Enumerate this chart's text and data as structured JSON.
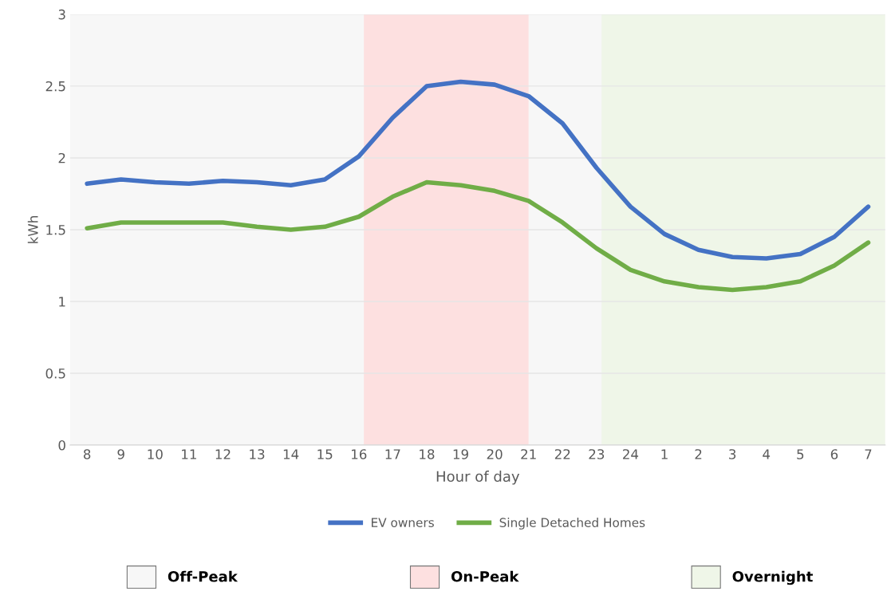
{
  "chart_data": {
    "type": "line",
    "xlabel": "Hour of day",
    "ylabel": "kWh",
    "categories": [
      "8",
      "9",
      "10",
      "11",
      "12",
      "13",
      "14",
      "15",
      "16",
      "17",
      "18",
      "19",
      "20",
      "21",
      "22",
      "23",
      "24",
      "1",
      "2",
      "3",
      "4",
      "5",
      "6",
      "7"
    ],
    "series": [
      {
        "name": "EV owners",
        "color": "#4472c4",
        "values": [
          1.82,
          1.85,
          1.83,
          1.82,
          1.84,
          1.83,
          1.81,
          1.85,
          2.01,
          2.28,
          2.5,
          2.53,
          2.51,
          2.43,
          2.24,
          1.93,
          1.66,
          1.47,
          1.36,
          1.31,
          1.3,
          1.33,
          1.45,
          1.66
        ]
      },
      {
        "name": "Single Detached Homes",
        "color": "#70ad47",
        "values": [
          1.51,
          1.55,
          1.55,
          1.55,
          1.55,
          1.52,
          1.5,
          1.52,
          1.59,
          1.73,
          1.83,
          1.81,
          1.77,
          1.7,
          1.55,
          1.37,
          1.22,
          1.14,
          1.1,
          1.08,
          1.1,
          1.14,
          1.25,
          1.41
        ]
      }
    ],
    "ylim": [
      0,
      3
    ],
    "yticks": [
      0,
      0.5,
      1,
      1.5,
      2,
      2.5,
      3
    ],
    "grid": "y",
    "legend": "bottom",
    "line_style": "solid",
    "marker": "none",
    "bands": [
      {
        "axis": "x",
        "from": "8",
        "to": "7",
        "label": "Off-Peak",
        "color": "#f7f7f7"
      },
      {
        "axis": "x",
        "from": "16",
        "to": "21",
        "label": "On-Peak",
        "color": "#fde0e0"
      },
      {
        "axis": "x",
        "from": "23",
        "to": "7",
        "label": "Overnight",
        "color": "#eff6e8"
      }
    ]
  }
}
